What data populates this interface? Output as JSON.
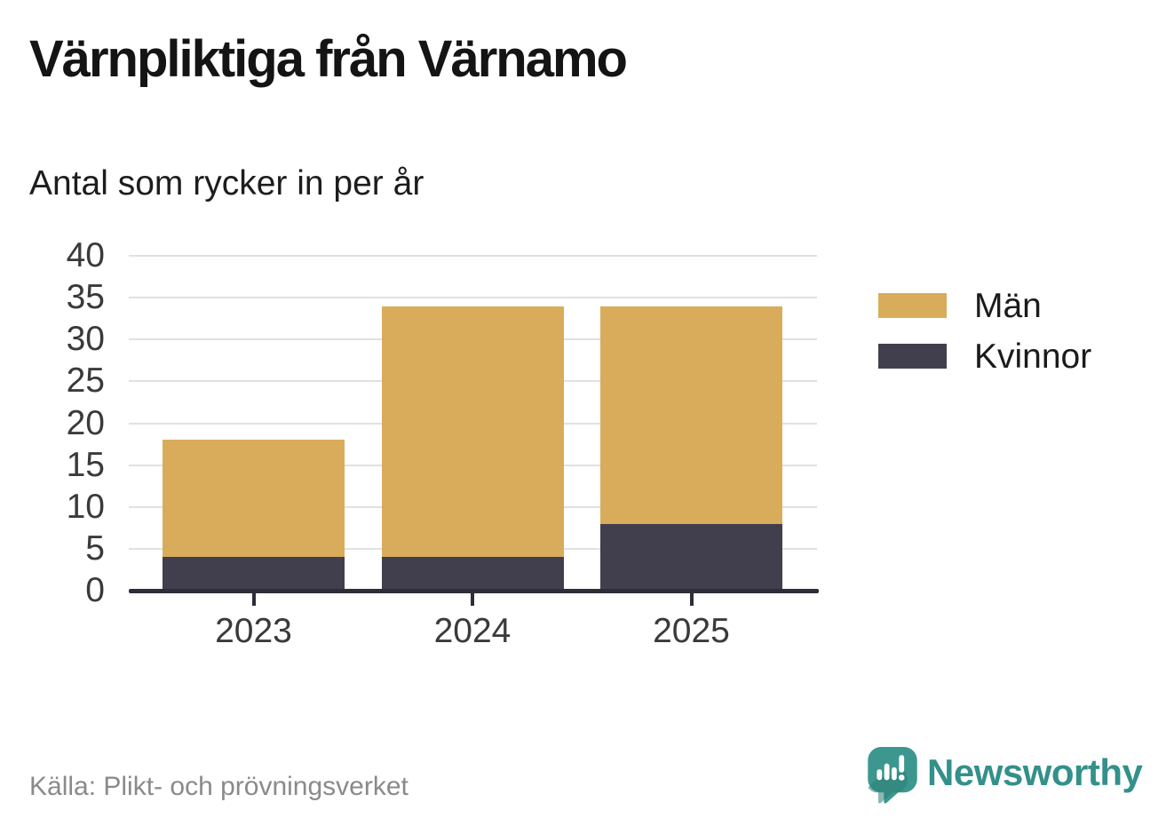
{
  "header": {
    "title": "Värnpliktiga från Värnamo",
    "subtitle": "Antal som rycker in per år"
  },
  "chart_data": {
    "type": "bar",
    "stacked": true,
    "title": "Värnpliktiga från Värnamo",
    "subtitle": "Antal som rycker in per år",
    "categories": [
      "2023",
      "2024",
      "2025"
    ],
    "series": [
      {
        "name": "Män",
        "values": [
          14,
          30,
          26
        ],
        "color": "#D9AC5C"
      },
      {
        "name": "Kvinnor",
        "values": [
          4,
          4,
          8
        ],
        "color": "#413F4E"
      }
    ],
    "stack_order_bottom_to_top": [
      "Kvinnor",
      "Män"
    ],
    "stacked_totals": [
      18,
      34,
      34
    ],
    "xlabel": "",
    "ylabel": "",
    "ylim": [
      0,
      40
    ],
    "ytick_step": 5,
    "yticks": [
      0,
      5,
      10,
      15,
      20,
      25,
      30,
      35,
      40
    ],
    "grid": true,
    "legend_position": "right"
  },
  "colors": {
    "axis": "#2E2D38",
    "grid": "#E1E1E1",
    "tick_label": "#3A3A3A",
    "brand_teal": "#3C988E",
    "brand_teal_dark": "#2E7E76",
    "brand_text": "#33908A"
  },
  "footer": {
    "source": "Källa: Plikt- och prövningsverket",
    "brand": "Newsworthy"
  }
}
